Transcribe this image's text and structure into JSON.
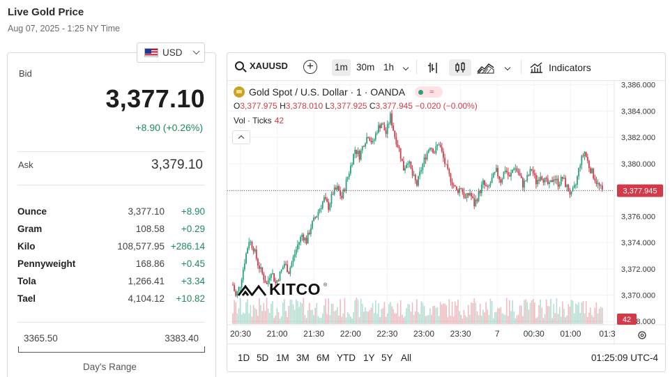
{
  "header": {
    "title": "Live Gold Price",
    "datetime": "Aug 07, 2025 - 1:25 NY Time"
  },
  "currency": {
    "selected": "USD",
    "flag_icon": "us-flag-icon"
  },
  "bid": {
    "label": "Bid",
    "value": "3,377.10",
    "change": "+8.90 (+0.26%)"
  },
  "ask": {
    "label": "Ask",
    "value": "3,379.10"
  },
  "units": [
    {
      "name": "Ounce",
      "value": "3,377.10",
      "change": "+8.90"
    },
    {
      "name": "Gram",
      "value": "108.58",
      "change": "+0.29"
    },
    {
      "name": "Kilo",
      "value": "108,577.95",
      "change": "+286.14"
    },
    {
      "name": "Pennyweight",
      "value": "168.86",
      "change": "+0.45"
    },
    {
      "name": "Tola",
      "value": "1,266.41",
      "change": "+3.34"
    },
    {
      "name": "Tael",
      "value": "4,104.12",
      "change": "+10.82"
    }
  ],
  "day_range": {
    "low": "3365.50",
    "high": "3383.40",
    "label": "Day's Range"
  },
  "toolbar": {
    "symbol": "XAUUSD",
    "intervals": [
      "1m",
      "30m",
      "1h"
    ],
    "active_interval": "1m",
    "indicators_label": "Indicators"
  },
  "legend": {
    "title": "Gold Spot / U.S. Dollar · 1 · OANDA",
    "ohlc": {
      "o_label": "O",
      "o": "3,377.975",
      "h_label": "H",
      "h": "3,378.010",
      "l_label": "L",
      "l": "3,377.925",
      "c_label": "C",
      "c": "3,377.945",
      "change": "−0.020 (−0.00%)"
    },
    "volume_label": "Vol · Ticks",
    "volume_value": "42"
  },
  "watermark": "KITCO",
  "colors": {
    "up": "#26a17b",
    "down": "#d23a4a",
    "accent_green": "#1f8a5b",
    "gold": "#c9a227"
  },
  "chart_data": {
    "type": "candlestick",
    "y_ticks": [
      "3,386.000",
      "3,384.000",
      "3,382.000",
      "3,380.000",
      "3,378.000",
      "3,376.000",
      "3,374.000",
      "3,372.000",
      "3,370.000",
      "3,368.000"
    ],
    "x_ticks": [
      "20:30",
      "21:00",
      "21:30",
      "22:00",
      "22:30",
      "23:00",
      "23:30",
      "7",
      "00:30",
      "01:00",
      "01:3"
    ],
    "ylim": [
      3367.8,
      3386.3
    ],
    "last_price": "3,377.945",
    "last_price_value": 3377.945,
    "volume_badge": "42",
    "close_series": [
      3371.2,
      3369.9,
      3370.8,
      3372.6,
      3374.2,
      3373.6,
      3372.4,
      3371.6,
      3370.8,
      3371.9,
      3370.9,
      3371.6,
      3372.4,
      3371.8,
      3372.8,
      3373.8,
      3374.6,
      3374.1,
      3375.2,
      3375.9,
      3376.6,
      3377.3,
      3376.7,
      3377.8,
      3378.1,
      3377.4,
      3378.6,
      3379.8,
      3381.1,
      3380.6,
      3381.6,
      3382.2,
      3381.5,
      3382.6,
      3383.1,
      3382.3,
      3383.6,
      3382.1,
      3381.1,
      3379.6,
      3380.3,
      3379.1,
      3378.4,
      3379.6,
      3380.6,
      3381.4,
      3380.9,
      3381.6,
      3380.4,
      3379.3,
      3378.6,
      3377.9,
      3378.2,
      3377.3,
      3377.8,
      3376.9,
      3377.7,
      3378.5,
      3378.0,
      3378.8,
      3379.4,
      3378.7,
      3379.6,
      3378.9,
      3379.8,
      3379.3,
      3378.4,
      3378.9,
      3379.6,
      3378.6,
      3379.2,
      3378.7,
      3378.3,
      3379.0,
      3378.5,
      3378.9,
      3378.2,
      3377.6,
      3378.4,
      3380.1,
      3380.9,
      3379.8,
      3379.1,
      3378.4,
      3377.9
    ]
  },
  "range_buttons": [
    "1D",
    "5D",
    "1M",
    "3M",
    "6M",
    "YTD",
    "1Y",
    "5Y",
    "All"
  ],
  "clock": "01:25:09 UTC-4"
}
